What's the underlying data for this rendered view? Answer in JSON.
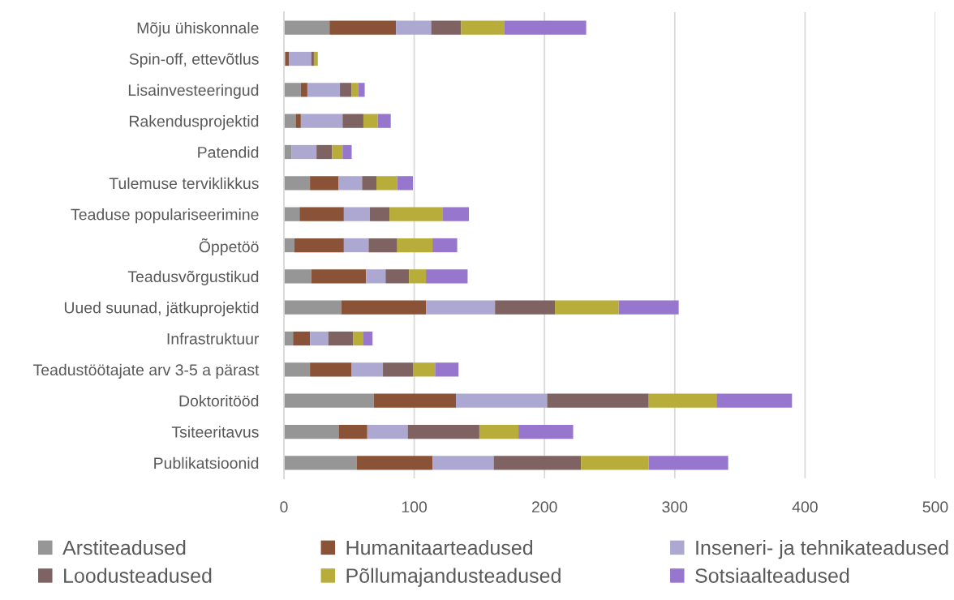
{
  "chart_data": {
    "type": "bar",
    "orientation": "horizontal",
    "stacked": true,
    "categories": [
      "Mõju ühiskonnale",
      "Spin-off, ettevõtlus",
      "Lisainvesteeringud",
      "Rakendusprojektid",
      "Patendid",
      "Tulemuse terviklikkus",
      "Teaduse populariseerimine",
      "Õppetöö",
      "Teadusvõrgustikud",
      "Uued suunad, jätkuprojektid",
      "Infrastruktuur",
      "Teadustöötajate arv 3-5 a pärast",
      "Doktoritööd",
      "Tsiteeritavus",
      "Publikatsioonid"
    ],
    "series": [
      {
        "name": "Arstiteadused",
        "color": "#969696",
        "values": [
          35,
          1,
          13,
          9,
          6,
          20,
          12,
          8,
          21,
          44,
          7,
          20,
          69,
          42,
          56
        ]
      },
      {
        "name": "Humanitaarteadused",
        "color": "#8a5236",
        "values": [
          51,
          3,
          5,
          4,
          0,
          22,
          34,
          38,
          42,
          65,
          13,
          32,
          63,
          22,
          58
        ]
      },
      {
        "name": "Inseneri- ja tehnikateadused",
        "color": "#aca8d2",
        "values": [
          27,
          17,
          25,
          32,
          19,
          18,
          20,
          19,
          15,
          53,
          14,
          24,
          70,
          31,
          47
        ]
      },
      {
        "name": "Loodusteadused",
        "color": "#7f6262",
        "values": [
          23,
          2,
          9,
          16,
          12,
          11,
          15,
          22,
          18,
          46,
          19,
          23,
          78,
          55,
          67
        ]
      },
      {
        "name": "Põllumajandusteadused",
        "color": "#b8ac3a",
        "values": [
          33,
          3,
          5,
          11,
          8,
          16,
          41,
          27,
          13,
          49,
          8,
          17,
          52,
          30,
          52
        ]
      },
      {
        "name": "Sotsiaalteadused",
        "color": "#9777ce",
        "values": [
          63,
          0,
          5,
          10,
          7,
          12,
          20,
          19,
          32,
          46,
          7,
          18,
          58,
          42,
          61
        ]
      }
    ],
    "xlim": [
      0,
      500
    ],
    "xticks": [
      0,
      100,
      200,
      300,
      400,
      500
    ],
    "grid": "x",
    "legend": "bottom"
  }
}
